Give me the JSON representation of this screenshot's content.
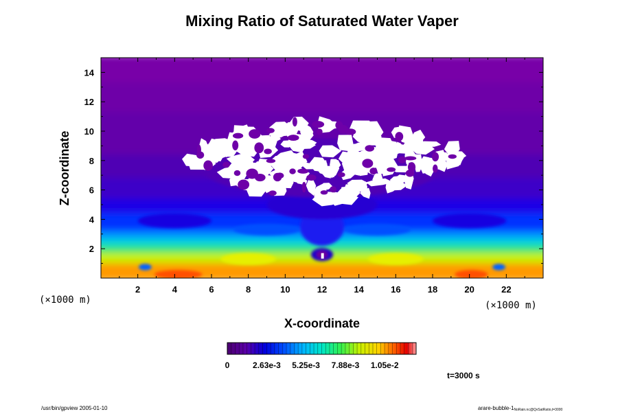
{
  "chart_data": {
    "type": "heatmap",
    "title": "Mixing Ratio of Saturated Water Vaper",
    "xlabel": "X-coordinate",
    "ylabel": "Z-coordinate",
    "x_unit_label": "(×1000 m)",
    "y_unit_label": "(×1000 m)",
    "xlim": [
      0,
      24
    ],
    "ylim": [
      0,
      15
    ],
    "x_ticks": [
      2,
      4,
      6,
      8,
      10,
      12,
      14,
      16,
      18,
      20,
      22
    ],
    "y_ticks": [
      2,
      4,
      6,
      8,
      10,
      12,
      14
    ],
    "colorbar": {
      "ticks": [
        "0",
        "2.63e-3",
        "5.25e-3",
        "7.88e-3",
        "1.05e-2"
      ],
      "tick_values": [
        0,
        0.00263,
        0.00525,
        0.00788,
        0.0105
      ],
      "range": [
        0,
        0.0126
      ],
      "colors": [
        "#4b0070",
        "#5a00a8",
        "#0000dd",
        "#0050ff",
        "#00b4ff",
        "#00e6c8",
        "#32f050",
        "#c8f000",
        "#ffd200",
        "#ff6400",
        "#e60000",
        "#ffa0a0"
      ]
    },
    "time_label": "t=3000 s",
    "features": {
      "saturated_region": "white patches, x≈4–21, z≈5.5–11",
      "surface_layer_max": "~1.05e-2 near z≈0–1 at x≈3–5 and x≈20–21",
      "bubble_center": "x=12, z≈1.5"
    }
  },
  "footer": {
    "left": "/usr/bin/gpview 2005-01-10",
    "right": "arare-bubble-1",
    "right_sub": "NoRain.nc@QvSatRatio,t=3000"
  }
}
